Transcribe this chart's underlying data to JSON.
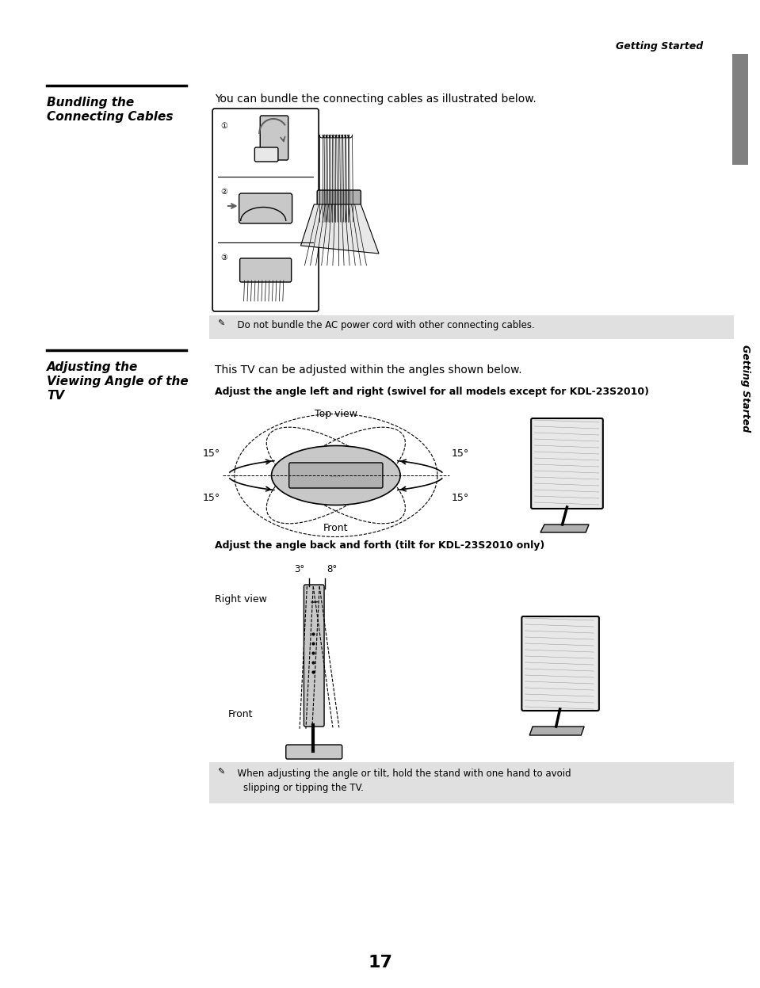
{
  "bg_color": "#ffffff",
  "page_number": "17",
  "header_text": "Getting Started",
  "sidebar_text": "Getting Started",
  "section1_title_line1": "Bundling the",
  "section1_title_line2": "Connecting Cables",
  "section1_body": "You can bundle the connecting cables as illustrated below.",
  "section1_note": "  Do not bundle the AC power cord with other connecting cables.",
  "section2_title_line1": "Adjusting the",
  "section2_title_line2": "Viewing Angle of the",
  "section2_title_line3": "TV",
  "section2_body": "This TV can be adjusted within the angles shown below.",
  "section2_sub1": "Adjust the angle left and right (swivel for all models except for KDL-23S2010)",
  "section2_sub2": "Adjust the angle back and forth (tilt for KDL-23S2010 only)",
  "top_view_label": "Top view",
  "front_label1": "Front",
  "right_view_label": "Right view",
  "front_label2": "Front",
  "section2_note_line1": "  When adjusting the angle or tilt, hold the stand with one hand to avoid",
  "section2_note_line2": "    slipping or tipping the TV.",
  "gray_note": "#e0e0e0",
  "gray_sidebar": "#808080",
  "gray_diagram": "#c8c8c8",
  "gray_light": "#e8e8e8",
  "gray_mid": "#b0b0b0"
}
